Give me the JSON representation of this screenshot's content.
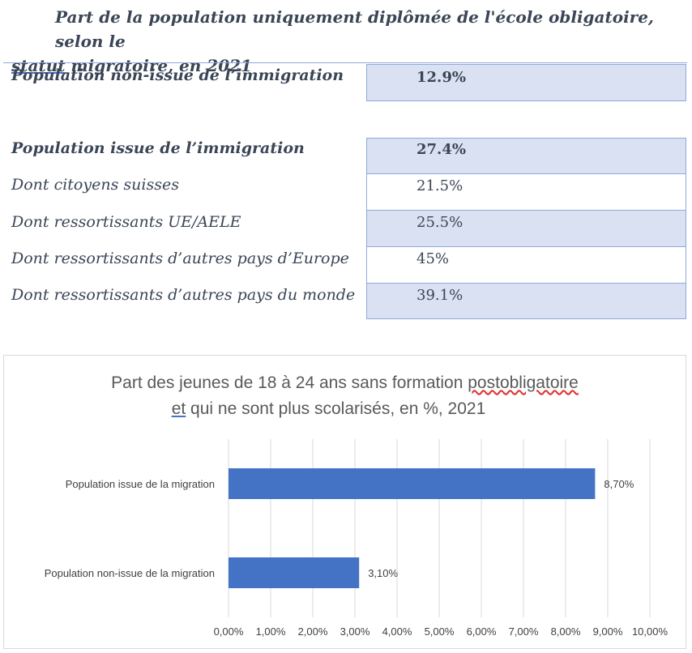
{
  "doc": {
    "title_line1": "Part de la population uniquement diplômée de l'école obligatoire, selon le",
    "title_line2_underlined": "statut",
    "title_line2_rest": " migratoire, en 2021"
  },
  "table": {
    "rows": [
      {
        "label": "Population non-issue de l’immigration",
        "value": "12.9%"
      },
      {
        "label": "Population issue de l’immigration",
        "value": "27.4%"
      },
      {
        "label": "Dont citoyens suisses",
        "value": "21.5%"
      },
      {
        "label": "Dont ressortissants UE/AELE",
        "value": "25.5%"
      },
      {
        "label": "Dont ressortissants d’autres pays d’Europe",
        "value": "45%"
      },
      {
        "label": "Dont ressortissants d’autres pays du monde",
        "value": "39.1%"
      }
    ]
  },
  "chart": {
    "title_line1_a": "Part des jeunes de 18 à 24 ans sans formation ",
    "title_line1_b": "postobligatoire",
    "title_line2_a": "et",
    "title_line2_b": " qui ne sont plus scolarisés, en %,  2021"
  },
  "chart_data": {
    "type": "bar",
    "orientation": "horizontal",
    "categories": [
      "Population issue de la migration",
      "Population non-issue de la migration"
    ],
    "values": [
      8.7,
      3.1
    ],
    "data_labels": [
      "8,70%",
      "3,10%"
    ],
    "xlim": [
      0,
      10
    ],
    "xticks": [
      "0,00%",
      "1,00%",
      "2,00%",
      "3,00%",
      "4,00%",
      "5,00%",
      "6,00%",
      "7,00%",
      "8,00%",
      "9,00%",
      "10,00%"
    ],
    "grid": true,
    "bar_color": "#4472c4",
    "grid_color": "#d9d9d9"
  }
}
